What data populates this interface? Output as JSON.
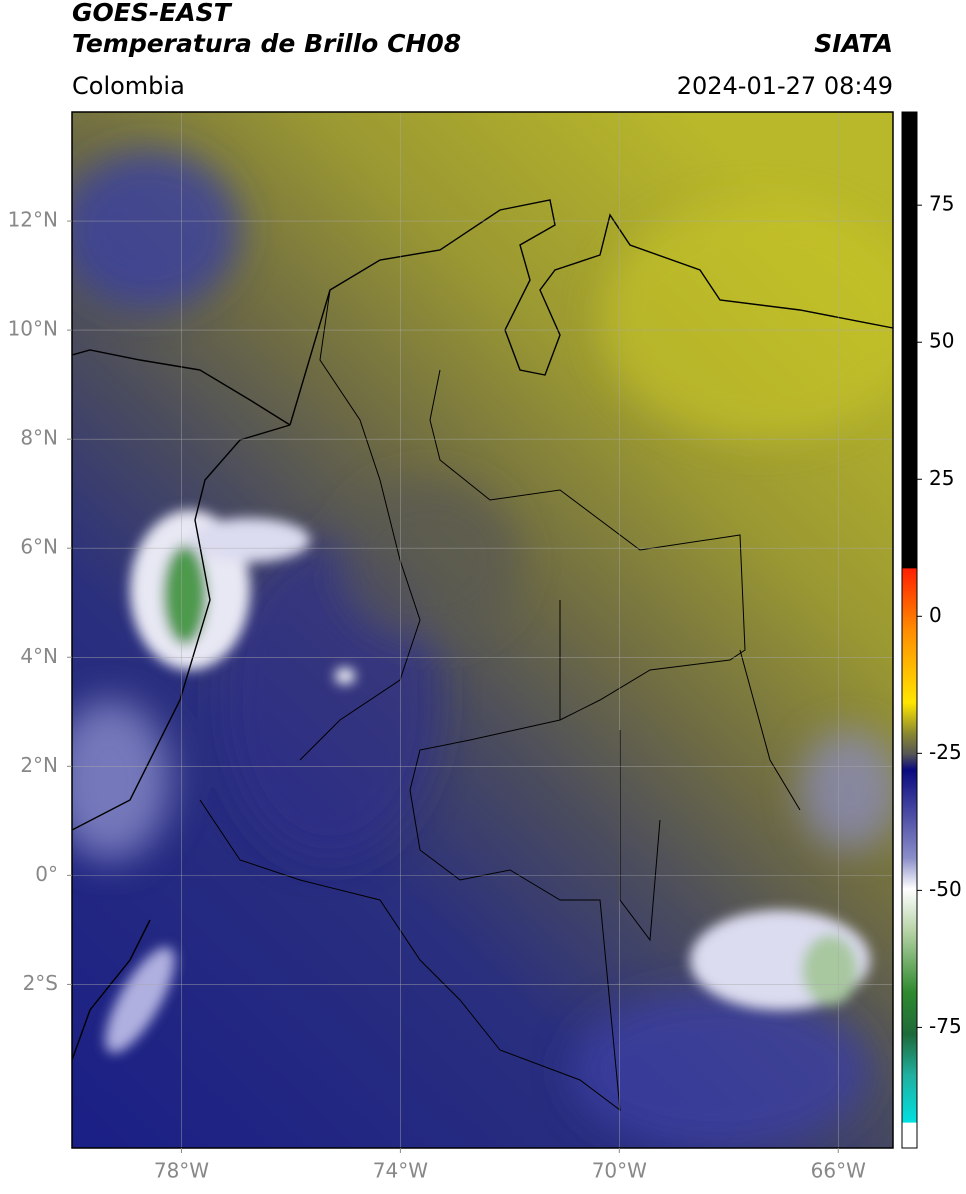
{
  "header": {
    "title": "GOES-EAST",
    "subtitle": "Temperatura de Brillo CH08",
    "region": "Colombia",
    "source": "SIATA",
    "timestamp": "2024-01-27 08:49"
  },
  "map": {
    "lonlim": [
      -80,
      -65
    ],
    "latlim": [
      -5,
      14
    ],
    "lon_ticks": [
      {
        "value": -78,
        "label": "78°W"
      },
      {
        "value": -74,
        "label": "74°W"
      },
      {
        "value": -70,
        "label": "70°W"
      },
      {
        "value": -66,
        "label": "66°W"
      }
    ],
    "lat_ticks": [
      {
        "value": 12,
        "label": "12°N"
      },
      {
        "value": 10,
        "label": "10°N"
      },
      {
        "value": 8,
        "label": "8°N"
      },
      {
        "value": 6,
        "label": "6°N"
      },
      {
        "value": 4,
        "label": "4°N"
      },
      {
        "value": 2,
        "label": "2°N"
      },
      {
        "value": 0,
        "label": "0°"
      },
      {
        "value": -2,
        "label": "2°S"
      }
    ]
  },
  "colorbar": {
    "lim": [
      -97,
      92
    ],
    "ticks": [
      75,
      50,
      25,
      0,
      -25,
      -50,
      -75
    ]
  }
}
